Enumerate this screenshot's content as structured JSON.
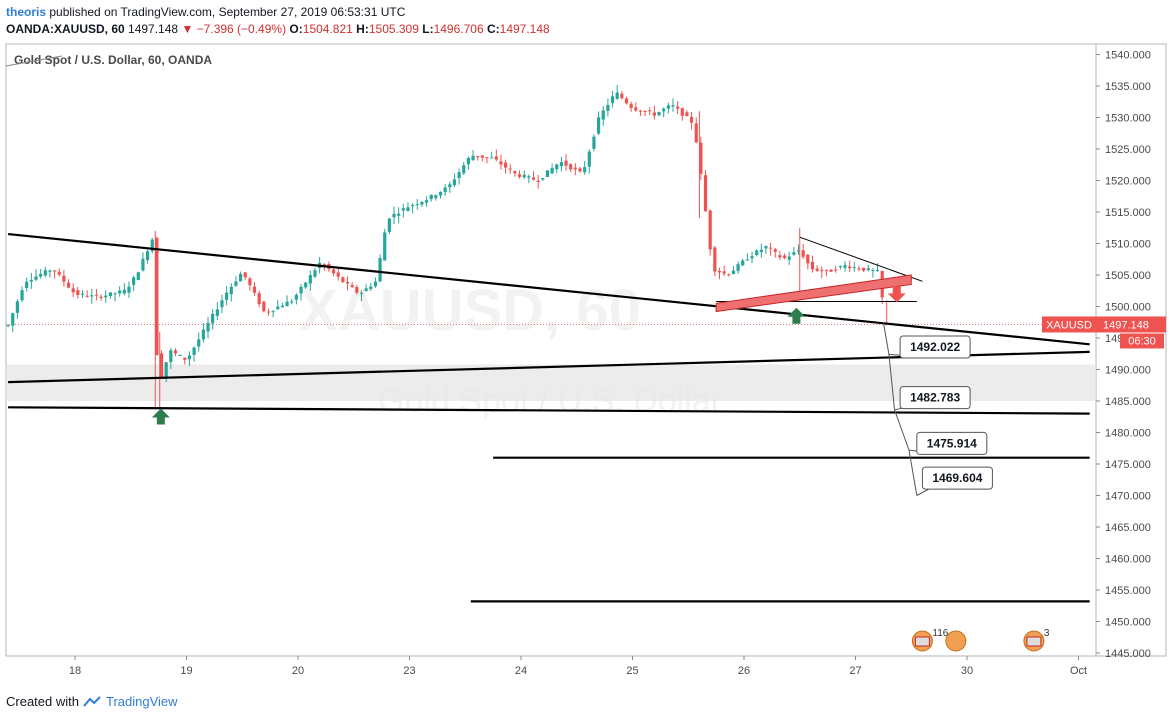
{
  "header": {
    "author": "theoris",
    "published_text": "published on TradingView.com, September 27, 2019 06:53:31 UTC",
    "symbol": "OANDA:XAUUSD, 60",
    "price": "1497.148",
    "change": "−7.396 (−0.49%)",
    "o_label": "O:",
    "o_value": "1504.821",
    "h_label": "H:",
    "h_value": "1505.309",
    "l_label": "L:",
    "l_value": "1496.706",
    "c_label": "C:",
    "c_value": "1497.148"
  },
  "footer": {
    "created_with": "Created with",
    "brand": "TradingView"
  },
  "colors": {
    "up": "#26a69a",
    "down": "#ef5350",
    "price_label": "#ef5350",
    "highlight": "#ee7070",
    "arrow_up": "#2e7d4f"
  },
  "chart_data": {
    "type": "candlestick",
    "title": "Gold Spot / U.S. Dollar, 60, OANDA",
    "watermark_symbol": "XAUUSD, 60",
    "watermark_name": "Gold Spot / U.S. Dollar",
    "ylim": [
      1445,
      1542
    ],
    "y_ticks": [
      "1540.000",
      "1535.000",
      "1530.000",
      "1525.000",
      "1520.000",
      "1515.000",
      "1510.000",
      "1505.000",
      "1500.000",
      "1495.000",
      "1490.000",
      "1485.000",
      "1480.000",
      "1475.000",
      "1470.000",
      "1465.000",
      "1460.000",
      "1455.000",
      "1450.000",
      "1445.000"
    ],
    "x_ticks": [
      {
        "label": "18",
        "t": 0.0
      },
      {
        "label": "19",
        "t": 1.0
      },
      {
        "label": "20",
        "t": 2.0
      },
      {
        "label": "23",
        "t": 3.0
      },
      {
        "label": "24",
        "t": 4.0
      },
      {
        "label": "25",
        "t": 5.0
      },
      {
        "label": "26",
        "t": 6.0
      },
      {
        "label": "27",
        "t": 7.0
      },
      {
        "label": "30",
        "t": 8.0
      },
      {
        "label": "Oct",
        "t": 9.0
      }
    ],
    "xlim": [
      -0.6,
      9.15
    ],
    "last_price_label": "XAUUSD",
    "last_price": "1497.148",
    "countdown": "06:30",
    "anchors": [
      [
        -0.6,
        1497.0
      ],
      [
        -0.45,
        1504.0
      ],
      [
        -0.2,
        1506.0
      ],
      [
        0.0,
        1502.0
      ],
      [
        0.2,
        1501.5
      ],
      [
        0.45,
        1502.5
      ],
      [
        0.55,
        1505.0
      ],
      [
        0.7,
        1511.0
      ],
      [
        0.72,
        1495.0
      ],
      [
        0.76,
        1488.0
      ],
      [
        0.85,
        1493.0
      ],
      [
        1.0,
        1491.5
      ],
      [
        1.15,
        1496.0
      ],
      [
        1.35,
        1502.0
      ],
      [
        1.5,
        1505.5
      ],
      [
        1.7,
        1499.0
      ],
      [
        1.95,
        1501.0
      ],
      [
        2.2,
        1507.0
      ],
      [
        2.4,
        1504.0
      ],
      [
        2.55,
        1502.0
      ],
      [
        2.7,
        1504.0
      ],
      [
        2.8,
        1514.0
      ],
      [
        3.0,
        1516.0
      ],
      [
        3.15,
        1517.0
      ],
      [
        3.35,
        1519.0
      ],
      [
        3.55,
        1524.0
      ],
      [
        3.75,
        1523.5
      ],
      [
        3.95,
        1521.0
      ],
      [
        4.15,
        1520.0
      ],
      [
        4.35,
        1523.0
      ],
      [
        4.55,
        1521.0
      ],
      [
        4.7,
        1530.0
      ],
      [
        4.85,
        1534.0
      ],
      [
        5.0,
        1531.5
      ],
      [
        5.2,
        1530.5
      ],
      [
        5.35,
        1532.0
      ],
      [
        5.55,
        1529.0
      ],
      [
        5.62,
        1520.0
      ],
      [
        5.72,
        1506.0
      ],
      [
        5.85,
        1505.0
      ],
      [
        6.05,
        1508.0
      ],
      [
        6.2,
        1509.5
      ],
      [
        6.35,
        1507.5
      ],
      [
        6.5,
        1509.0
      ],
      [
        6.6,
        1506.0
      ],
      [
        6.75,
        1505.5
      ],
      [
        6.9,
        1506.5
      ],
      [
        7.05,
        1506.0
      ],
      [
        7.2,
        1505.5
      ],
      [
        7.28,
        1497.1
      ]
    ],
    "trend_lines": [
      {
        "name": "descending-trend",
        "p1": [
          -0.6,
          1511.5
        ],
        "p2": [
          9.1,
          1494.0
        ]
      },
      {
        "name": "ascending-support",
        "p1": [
          -0.6,
          1488.0
        ],
        "p2": [
          9.1,
          1492.8
        ]
      },
      {
        "name": "horizontal-support-1",
        "p1": [
          -0.6,
          1484.0
        ],
        "p2": [
          9.1,
          1483.0
        ]
      },
      {
        "name": "horizontal-support-2",
        "p1": [
          3.75,
          1476.0
        ],
        "p2": [
          9.1,
          1476.0
        ]
      },
      {
        "name": "horizontal-support-3",
        "p1": [
          3.55,
          1453.2
        ],
        "p2": [
          9.1,
          1453.2
        ]
      },
      {
        "name": "wedge-upper",
        "p1": [
          6.5,
          1511.0
        ],
        "p2": [
          7.6,
          1504.0
        ]
      },
      {
        "name": "wedge-base",
        "p1": [
          5.75,
          1500.8
        ],
        "p2": [
          7.55,
          1500.8
        ]
      }
    ],
    "support_band": {
      "top": 1490.8,
      "bottom": 1485.0
    },
    "target_labels": [
      "1492.022",
      "1482.783",
      "1475.914",
      "1469.604"
    ],
    "target_prices": [
      1492.022,
      1482.783,
      1475.914,
      1469.604
    ],
    "event_badges": [
      "116",
      "3"
    ]
  }
}
